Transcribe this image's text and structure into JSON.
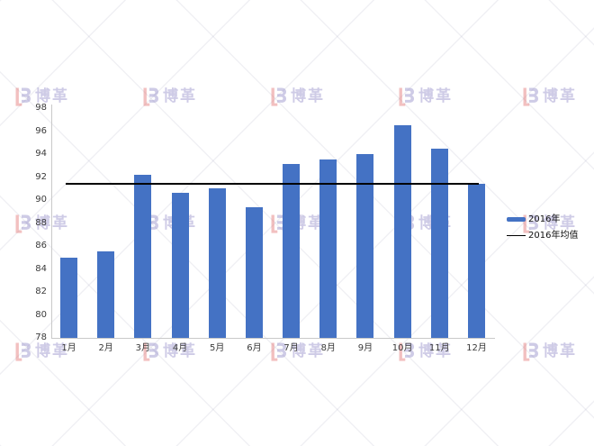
{
  "watermark": {
    "brand_text": "博革",
    "logo_red_color": "#E16A6A",
    "logo_lavender_color": "#8C84C4"
  },
  "chart_data": {
    "type": "bar",
    "title": "",
    "xlabel": "",
    "ylabel": "",
    "categories": [
      "1月",
      "2月",
      "3月",
      "4月",
      "5月",
      "6月",
      "7月",
      "8月",
      "9月",
      "10月",
      "11月",
      "12月"
    ],
    "series": [
      {
        "name": "2016年",
        "type": "bar",
        "color": "#4472C4",
        "values": [
          85.0,
          85.5,
          92.2,
          90.6,
          91.0,
          89.4,
          93.1,
          93.5,
          94.0,
          96.5,
          94.5,
          91.4
        ]
      },
      {
        "name": "2016年均值",
        "type": "average-line",
        "color": "#000000",
        "value": 91.4
      }
    ],
    "ylim": [
      78,
      98
    ],
    "ytick_step": 2,
    "yticks": [
      78,
      80,
      82,
      84,
      86,
      88,
      90,
      92,
      94,
      96,
      98
    ],
    "grid": false,
    "legend_position": "right"
  }
}
